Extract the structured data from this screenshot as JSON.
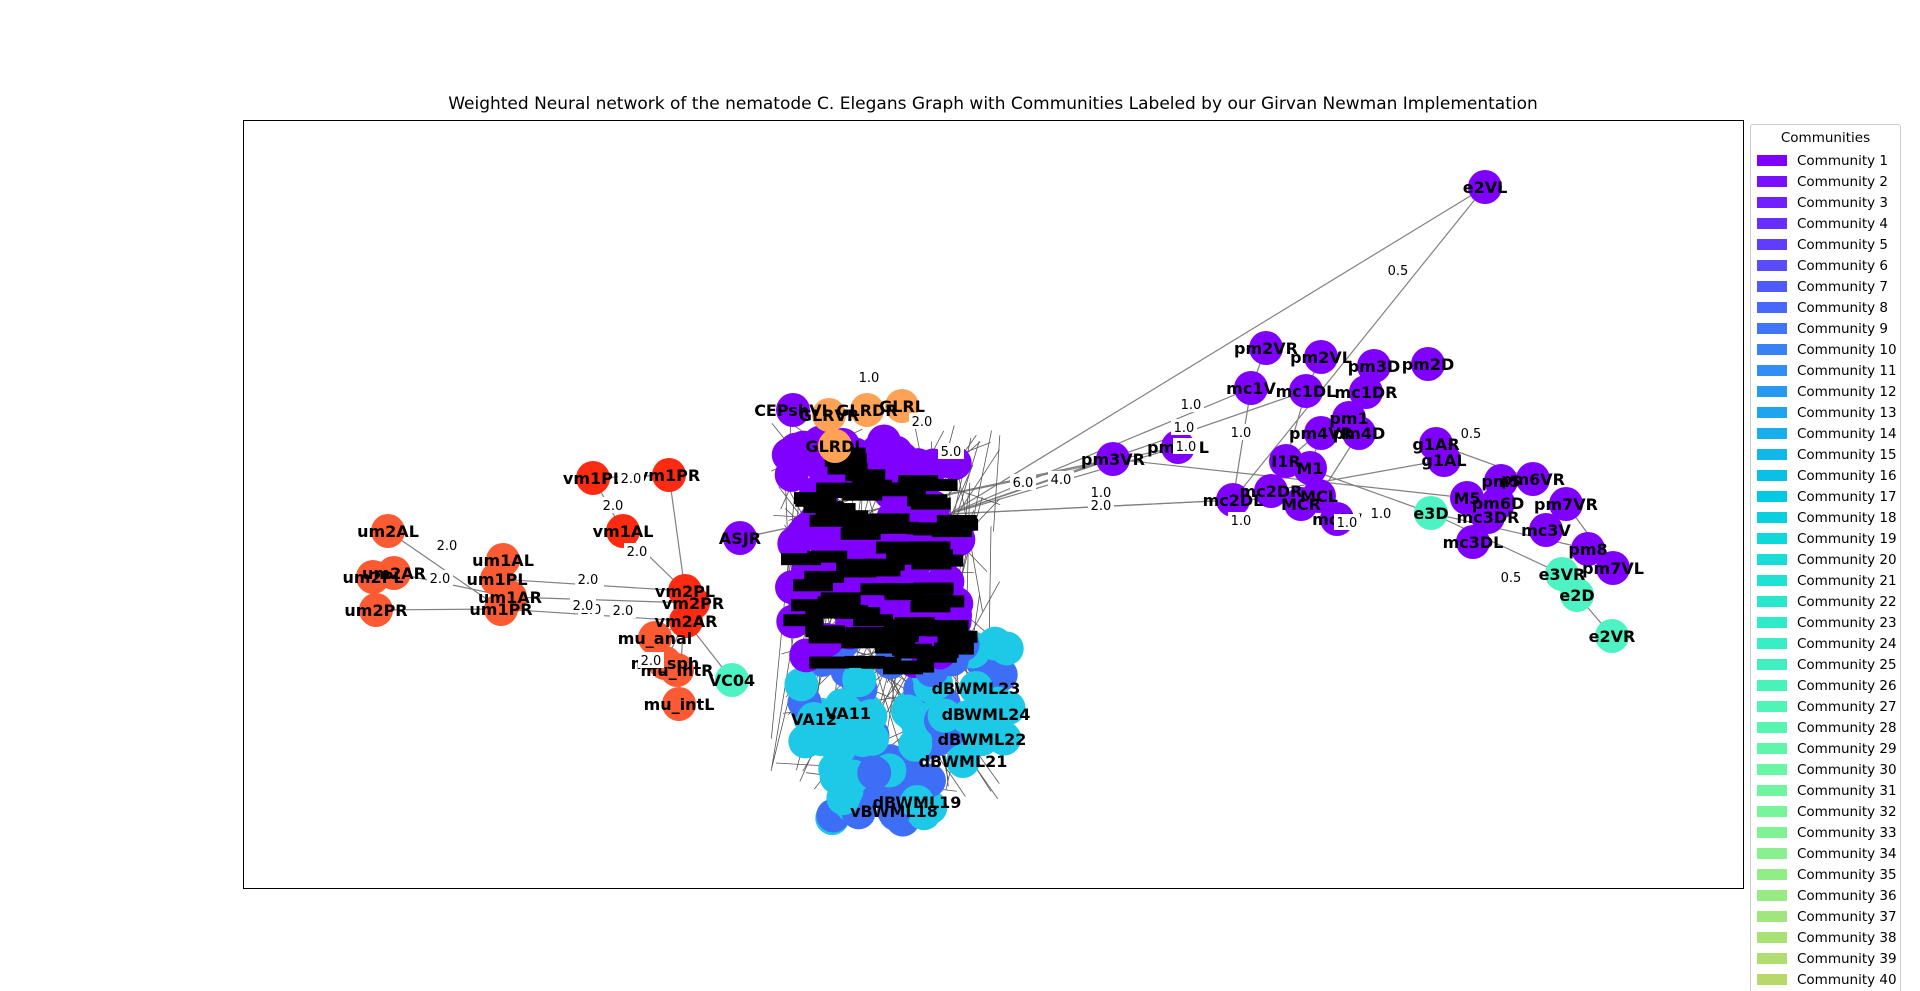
{
  "title": "Weighted Neural network of the nematode C. Elegans Graph with Communities Labeled by our Girvan Newman Implementation",
  "legend": {
    "title": "Communities",
    "items": [
      {
        "label": "Community 1",
        "color": "#8000ff"
      },
      {
        "label": "Community 2",
        "color": "#7810ff"
      },
      {
        "label": "Community 3",
        "color": "#701ffe"
      },
      {
        "label": "Community 4",
        "color": "#682efe"
      },
      {
        "label": "Community 5",
        "color": "#603dfd"
      },
      {
        "label": "Community 6",
        "color": "#584cfc"
      },
      {
        "label": "Community 7",
        "color": "#505afb"
      },
      {
        "label": "Community 8",
        "color": "#4868fa"
      },
      {
        "label": "Community 9",
        "color": "#4075f8"
      },
      {
        "label": "Community 10",
        "color": "#3882f6"
      },
      {
        "label": "Community 11",
        "color": "#308ef4"
      },
      {
        "label": "Community 12",
        "color": "#2899f1"
      },
      {
        "label": "Community 13",
        "color": "#20a4ef"
      },
      {
        "label": "Community 14",
        "color": "#18aeec"
      },
      {
        "label": "Community 15",
        "color": "#10b8e9"
      },
      {
        "label": "Community 16",
        "color": "#08c1e5"
      },
      {
        "label": "Community 17",
        "color": "#00c9e2"
      },
      {
        "label": "Community 18",
        "color": "#08d0de"
      },
      {
        "label": "Community 19",
        "color": "#10d7da"
      },
      {
        "label": "Community 20",
        "color": "#18ddd6"
      },
      {
        "label": "Community 21",
        "color": "#20e2d2"
      },
      {
        "label": "Community 22",
        "color": "#28e7cd"
      },
      {
        "label": "Community 23",
        "color": "#30ebc9"
      },
      {
        "label": "Community 24",
        "color": "#38eec4"
      },
      {
        "label": "Community 25",
        "color": "#40f1bf"
      },
      {
        "label": "Community 26",
        "color": "#48f3ba"
      },
      {
        "label": "Community 27",
        "color": "#50f4b5"
      },
      {
        "label": "Community 28",
        "color": "#58f5b0"
      },
      {
        "label": "Community 29",
        "color": "#60f6aa"
      },
      {
        "label": "Community 30",
        "color": "#68f6a5"
      },
      {
        "label": "Community 31",
        "color": "#70f59f"
      },
      {
        "label": "Community 32",
        "color": "#78f49a"
      },
      {
        "label": "Community 33",
        "color": "#80f294"
      },
      {
        "label": "Community 34",
        "color": "#88f08e"
      },
      {
        "label": "Community 35",
        "color": "#90ed88"
      },
      {
        "label": "Community 36",
        "color": "#98ea82"
      },
      {
        "label": "Community 37",
        "color": "#a0e67c"
      },
      {
        "label": "Community 38",
        "color": "#a8e276"
      },
      {
        "label": "Community 39",
        "color": "#b0dd70"
      },
      {
        "label": "Community 40",
        "color": "#b8d86a"
      }
    ]
  },
  "colors": {
    "purple": "#7f00ff",
    "red": "#ff2a12",
    "orange_red": "#fc5a33",
    "orange": "#ffa256",
    "teal": "#4df3c2",
    "cyan": "#1ec9e8",
    "blue": "#3f6ef6",
    "edge": "#808080"
  },
  "nodes": [
    {
      "label": "e2VL",
      "color": "#7f00ff"
    },
    {
      "label": "pm2VR",
      "color": "#7f00ff"
    },
    {
      "label": "pm2VL",
      "color": "#7f00ff"
    },
    {
      "label": "pm3D",
      "color": "#7f00ff"
    },
    {
      "label": "pm2D",
      "color": "#7f00ff"
    },
    {
      "label": "mc1V",
      "color": "#7f00ff"
    },
    {
      "label": "mc1DL",
      "color": "#7f00ff"
    },
    {
      "label": "mc1DR",
      "color": "#7f00ff"
    },
    {
      "label": "pm4VR",
      "color": "#7f00ff"
    },
    {
      "label": "pm4D",
      "color": "#7f00ff"
    },
    {
      "label": "pm1",
      "color": "#7f00ff"
    },
    {
      "label": "g1AR",
      "color": "#7f00ff"
    },
    {
      "label": "g1AL",
      "color": "#7f00ff"
    },
    {
      "label": "pm3VR",
      "color": "#7f00ff"
    },
    {
      "label": "pm3VL",
      "color": "#7f00ff"
    },
    {
      "label": "I1R",
      "color": "#7f00ff"
    },
    {
      "label": "M1",
      "color": "#7f00ff"
    },
    {
      "label": "pm6VR",
      "color": "#7f00ff"
    },
    {
      "label": "pm5",
      "color": "#7f00ff"
    },
    {
      "label": "mc2DR",
      "color": "#7f00ff"
    },
    {
      "label": "mc2DL",
      "color": "#7f00ff"
    },
    {
      "label": "MCL",
      "color": "#7f00ff"
    },
    {
      "label": "MCR",
      "color": "#7f00ff"
    },
    {
      "label": "mc2V",
      "color": "#7f00ff"
    },
    {
      "label": "e3D",
      "color": "#4df3c2"
    },
    {
      "label": "M5",
      "color": "#7f00ff"
    },
    {
      "label": "pm6D",
      "color": "#7f00ff"
    },
    {
      "label": "pm7VR",
      "color": "#7f00ff"
    },
    {
      "label": "mc3DR",
      "color": "#7f00ff"
    },
    {
      "label": "mc3V",
      "color": "#7f00ff"
    },
    {
      "label": "mc3DL",
      "color": "#7f00ff"
    },
    {
      "label": "pm8",
      "color": "#7f00ff"
    },
    {
      "label": "e3VR",
      "color": "#4df3c2"
    },
    {
      "label": "pm7VL",
      "color": "#7f00ff"
    },
    {
      "label": "e2D",
      "color": "#4df3c2"
    },
    {
      "label": "e2VR",
      "color": "#4df3c2"
    },
    {
      "label": "vm1PL",
      "color": "#ff2a12"
    },
    {
      "label": "vm1PR",
      "color": "#ff2a12"
    },
    {
      "label": "vm1AL",
      "color": "#ff2a12"
    },
    {
      "label": "um2AL",
      "color": "#fc5a33"
    },
    {
      "label": "um1AL",
      "color": "#fc5a33"
    },
    {
      "label": "um2AR",
      "color": "#fc5a33"
    },
    {
      "label": "um2PL",
      "color": "#fc5a33"
    },
    {
      "label": "um1PL",
      "color": "#fc5a33"
    },
    {
      "label": "um1AR",
      "color": "#fc5a33"
    },
    {
      "label": "um2PR",
      "color": "#fc5a33"
    },
    {
      "label": "um1PR",
      "color": "#fc5a33"
    },
    {
      "label": "vm2PL",
      "color": "#ff2a12"
    },
    {
      "label": "vm2PR",
      "color": "#ff2a12"
    },
    {
      "label": "vm2AR",
      "color": "#ff2a12"
    },
    {
      "label": "mu_anal",
      "color": "#fc5a33"
    },
    {
      "label": "mu_sph",
      "color": "#fc5a33"
    },
    {
      "label": "mu_intR",
      "color": "#fc5a33"
    },
    {
      "label": "mu_intL",
      "color": "#fc5a33"
    },
    {
      "label": "VC04",
      "color": "#4df3c2"
    },
    {
      "label": "CEPshVL",
      "color": "#7f00ff"
    },
    {
      "label": "GLRVR",
      "color": "#ffa256"
    },
    {
      "label": "GLRDR",
      "color": "#ffa256"
    },
    {
      "label": "GLRL",
      "color": "#ffa256"
    },
    {
      "label": "GLRDL",
      "color": "#ffa256"
    },
    {
      "label": "ASJR",
      "color": "#7f00ff"
    },
    {
      "label": "VA12",
      "color": "#1ec9e8"
    },
    {
      "label": "VA11",
      "color": "#1ec9e8"
    },
    {
      "label": "dBWML21",
      "color": "#1ec9e8"
    },
    {
      "label": "vBWML18",
      "color": "#3f6ef6"
    },
    {
      "label": "dBWML19",
      "color": "#1ec9e8"
    },
    {
      "label": "dBWML23",
      "color": "#1ec9e8"
    },
    {
      "label": "dBWML24",
      "color": "#1ec9e8"
    },
    {
      "label": "dBWML22",
      "color": "#1ec9e8"
    }
  ],
  "edge_weights": [
    "0.5",
    "1.0",
    "1.0",
    "1.0",
    "1.0",
    "6.0",
    "4.0",
    "1.0",
    "2.0",
    "1.0",
    "0.5",
    "0.5",
    "1.0",
    "1.0",
    "2.0",
    "2.0",
    "2.0",
    "2.0",
    "2.0",
    "2.0",
    "2.0",
    "2.0",
    "2.0",
    "2.0",
    "2.0",
    "2.0",
    "1.0",
    "2.0",
    "5.0"
  ]
}
